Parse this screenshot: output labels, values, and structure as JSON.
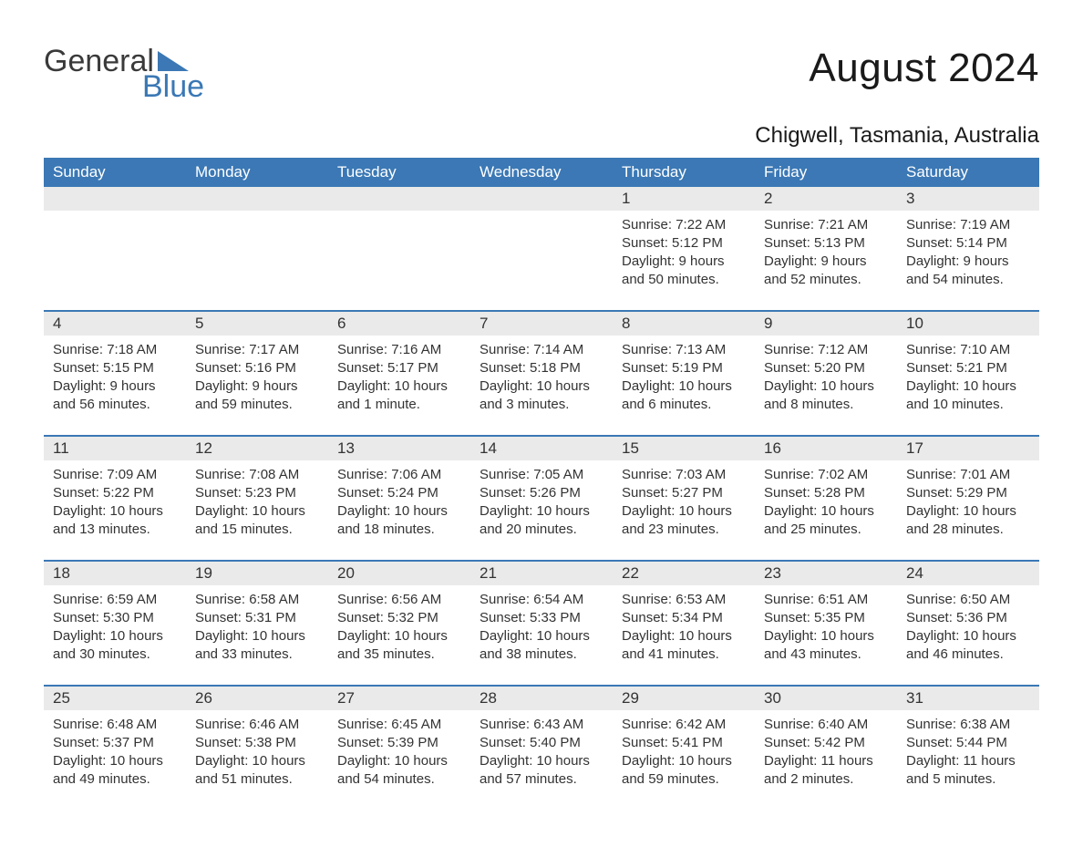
{
  "logo": {
    "word1": "General",
    "word2": "Blue",
    "triangle_color": "#3b78b5"
  },
  "title": "August 2024",
  "location": "Chigwell, Tasmania, Australia",
  "colors": {
    "header_bg": "#3b78b5",
    "header_text": "#ffffff",
    "daynum_bg": "#eaeaea",
    "sep_line": "#3b78b5",
    "body_text": "#333333",
    "page_bg": "#ffffff"
  },
  "day_headers": [
    "Sunday",
    "Monday",
    "Tuesday",
    "Wednesday",
    "Thursday",
    "Friday",
    "Saturday"
  ],
  "weeks": [
    [
      null,
      null,
      null,
      null,
      {
        "n": "1",
        "sunrise": "7:22 AM",
        "sunset": "5:12 PM",
        "daylight": "9 hours and 50 minutes."
      },
      {
        "n": "2",
        "sunrise": "7:21 AM",
        "sunset": "5:13 PM",
        "daylight": "9 hours and 52 minutes."
      },
      {
        "n": "3",
        "sunrise": "7:19 AM",
        "sunset": "5:14 PM",
        "daylight": "9 hours and 54 minutes."
      }
    ],
    [
      {
        "n": "4",
        "sunrise": "7:18 AM",
        "sunset": "5:15 PM",
        "daylight": "9 hours and 56 minutes."
      },
      {
        "n": "5",
        "sunrise": "7:17 AM",
        "sunset": "5:16 PM",
        "daylight": "9 hours and 59 minutes."
      },
      {
        "n": "6",
        "sunrise": "7:16 AM",
        "sunset": "5:17 PM",
        "daylight": "10 hours and 1 minute."
      },
      {
        "n": "7",
        "sunrise": "7:14 AM",
        "sunset": "5:18 PM",
        "daylight": "10 hours and 3 minutes."
      },
      {
        "n": "8",
        "sunrise": "7:13 AM",
        "sunset": "5:19 PM",
        "daylight": "10 hours and 6 minutes."
      },
      {
        "n": "9",
        "sunrise": "7:12 AM",
        "sunset": "5:20 PM",
        "daylight": "10 hours and 8 minutes."
      },
      {
        "n": "10",
        "sunrise": "7:10 AM",
        "sunset": "5:21 PM",
        "daylight": "10 hours and 10 minutes."
      }
    ],
    [
      {
        "n": "11",
        "sunrise": "7:09 AM",
        "sunset": "5:22 PM",
        "daylight": "10 hours and 13 minutes."
      },
      {
        "n": "12",
        "sunrise": "7:08 AM",
        "sunset": "5:23 PM",
        "daylight": "10 hours and 15 minutes."
      },
      {
        "n": "13",
        "sunrise": "7:06 AM",
        "sunset": "5:24 PM",
        "daylight": "10 hours and 18 minutes."
      },
      {
        "n": "14",
        "sunrise": "7:05 AM",
        "sunset": "5:26 PM",
        "daylight": "10 hours and 20 minutes."
      },
      {
        "n": "15",
        "sunrise": "7:03 AM",
        "sunset": "5:27 PM",
        "daylight": "10 hours and 23 minutes."
      },
      {
        "n": "16",
        "sunrise": "7:02 AM",
        "sunset": "5:28 PM",
        "daylight": "10 hours and 25 minutes."
      },
      {
        "n": "17",
        "sunrise": "7:01 AM",
        "sunset": "5:29 PM",
        "daylight": "10 hours and 28 minutes."
      }
    ],
    [
      {
        "n": "18",
        "sunrise": "6:59 AM",
        "sunset": "5:30 PM",
        "daylight": "10 hours and 30 minutes."
      },
      {
        "n": "19",
        "sunrise": "6:58 AM",
        "sunset": "5:31 PM",
        "daylight": "10 hours and 33 minutes."
      },
      {
        "n": "20",
        "sunrise": "6:56 AM",
        "sunset": "5:32 PM",
        "daylight": "10 hours and 35 minutes."
      },
      {
        "n": "21",
        "sunrise": "6:54 AM",
        "sunset": "5:33 PM",
        "daylight": "10 hours and 38 minutes."
      },
      {
        "n": "22",
        "sunrise": "6:53 AM",
        "sunset": "5:34 PM",
        "daylight": "10 hours and 41 minutes."
      },
      {
        "n": "23",
        "sunrise": "6:51 AM",
        "sunset": "5:35 PM",
        "daylight": "10 hours and 43 minutes."
      },
      {
        "n": "24",
        "sunrise": "6:50 AM",
        "sunset": "5:36 PM",
        "daylight": "10 hours and 46 minutes."
      }
    ],
    [
      {
        "n": "25",
        "sunrise": "6:48 AM",
        "sunset": "5:37 PM",
        "daylight": "10 hours and 49 minutes."
      },
      {
        "n": "26",
        "sunrise": "6:46 AM",
        "sunset": "5:38 PM",
        "daylight": "10 hours and 51 minutes."
      },
      {
        "n": "27",
        "sunrise": "6:45 AM",
        "sunset": "5:39 PM",
        "daylight": "10 hours and 54 minutes."
      },
      {
        "n": "28",
        "sunrise": "6:43 AM",
        "sunset": "5:40 PM",
        "daylight": "10 hours and 57 minutes."
      },
      {
        "n": "29",
        "sunrise": "6:42 AM",
        "sunset": "5:41 PM",
        "daylight": "10 hours and 59 minutes."
      },
      {
        "n": "30",
        "sunrise": "6:40 AM",
        "sunset": "5:42 PM",
        "daylight": "11 hours and 2 minutes."
      },
      {
        "n": "31",
        "sunrise": "6:38 AM",
        "sunset": "5:44 PM",
        "daylight": "11 hours and 5 minutes."
      }
    ]
  ],
  "labels": {
    "sunrise": "Sunrise: ",
    "sunset": "Sunset: ",
    "daylight": "Daylight: "
  }
}
